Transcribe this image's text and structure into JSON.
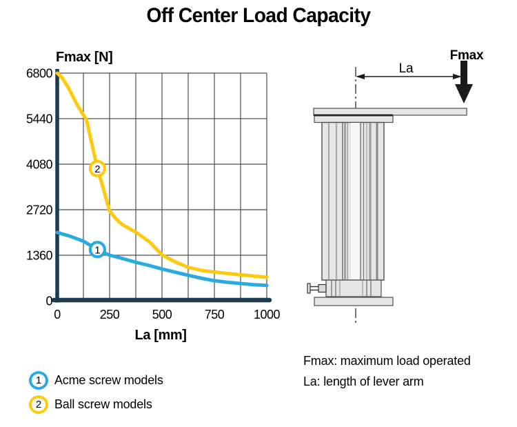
{
  "title": "Off Center Load Capacity",
  "chart_data": {
    "type": "line",
    "title": "Off Center Load Capacity",
    "xlabel": "La [mm]",
    "ylabel": "Fmax [N]",
    "xlim": [
      0,
      1000
    ],
    "ylim": [
      0,
      6800
    ],
    "xticks": [
      0,
      250,
      500,
      750,
      1000
    ],
    "yticks": [
      0,
      1360,
      2720,
      4080,
      5440,
      6800
    ],
    "x_grid_step": 125,
    "y_grid_step": 1360,
    "grid": true,
    "grid_color": "#4d4d4d",
    "axis_color": "#1b3c50",
    "legend_position": "below-left",
    "series": [
      {
        "name": "Acme screw models",
        "marker_label": "1",
        "color": "#29abe2",
        "marker_at": {
          "x": 192,
          "y": 1530
        },
        "points": [
          [
            0,
            2040
          ],
          [
            60,
            1930
          ],
          [
            125,
            1780
          ],
          [
            192,
            1530
          ],
          [
            250,
            1360
          ],
          [
            310,
            1265
          ],
          [
            375,
            1150
          ],
          [
            440,
            1050
          ],
          [
            500,
            950
          ],
          [
            560,
            860
          ],
          [
            625,
            760
          ],
          [
            690,
            670
          ],
          [
            750,
            600
          ],
          [
            810,
            555
          ],
          [
            875,
            515
          ],
          [
            940,
            480
          ],
          [
            1000,
            460
          ]
        ]
      },
      {
        "name": "Ball screw models",
        "marker_label": "2",
        "color": "#ffc90e",
        "marker_at": {
          "x": 192,
          "y": 3950
        },
        "points": [
          [
            0,
            6800
          ],
          [
            25,
            6650
          ],
          [
            50,
            6400
          ],
          [
            75,
            6100
          ],
          [
            100,
            5800
          ],
          [
            140,
            5400
          ],
          [
            170,
            4550
          ],
          [
            192,
            3950
          ],
          [
            220,
            3350
          ],
          [
            250,
            2680
          ],
          [
            280,
            2450
          ],
          [
            310,
            2280
          ],
          [
            375,
            2050
          ],
          [
            440,
            1760
          ],
          [
            500,
            1370
          ],
          [
            560,
            1170
          ],
          [
            625,
            1000
          ],
          [
            690,
            905
          ],
          [
            750,
            860
          ],
          [
            810,
            815
          ],
          [
            875,
            775
          ],
          [
            940,
            735
          ],
          [
            1000,
            700
          ]
        ]
      }
    ]
  },
  "legend": {
    "items": [
      {
        "number": "1",
        "label": "Acme screw models",
        "color": "#29abe2"
      },
      {
        "number": "2",
        "label": "Ball screw models",
        "color": "#ffc90e"
      }
    ]
  },
  "diagram": {
    "la_label": "La",
    "fmax_label": "Fmax"
  },
  "notes": {
    "line1": "Fmax: maximum load operated",
    "line2": "La: length of lever arm"
  }
}
